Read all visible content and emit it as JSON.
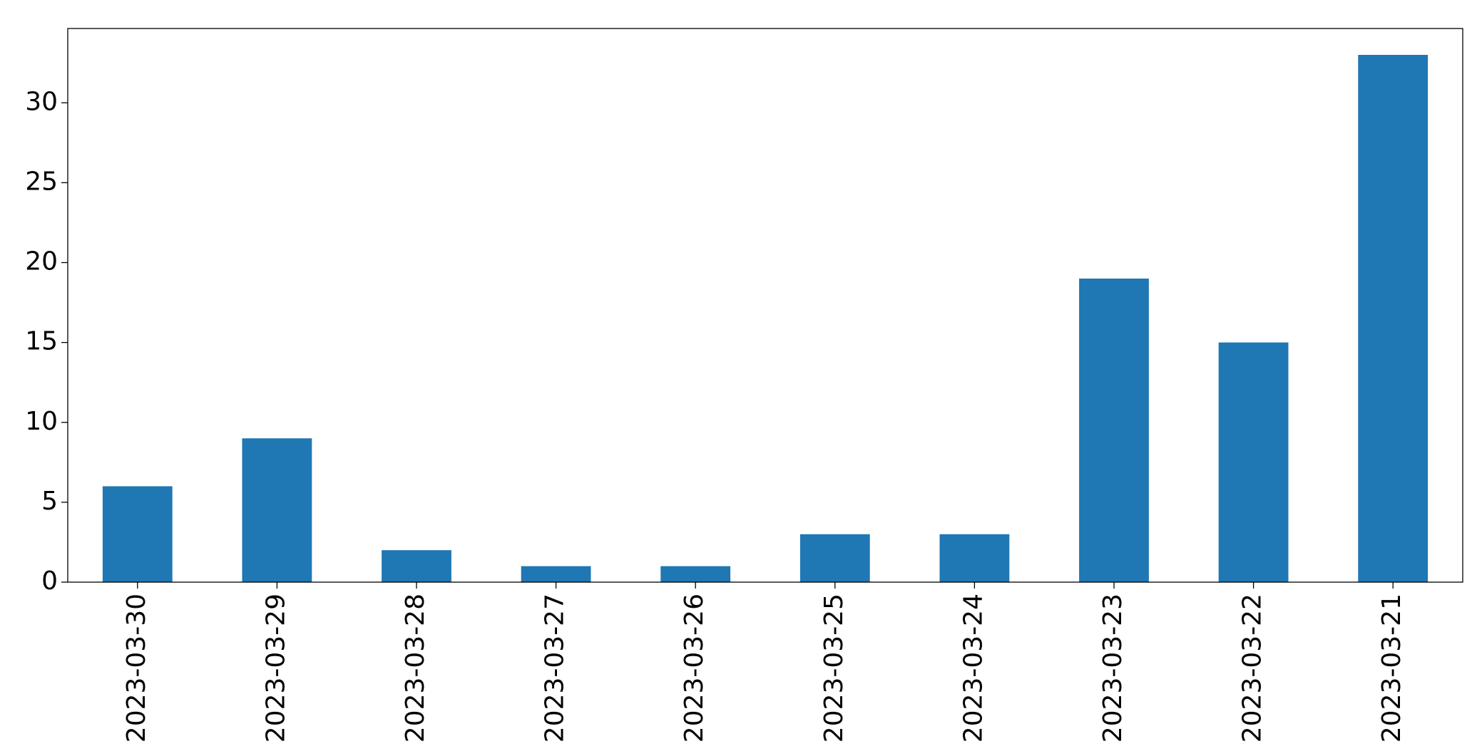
{
  "chart_data": {
    "type": "bar",
    "categories": [
      "2023-03-30",
      "2023-03-29",
      "2023-03-28",
      "2023-03-27",
      "2023-03-26",
      "2023-03-25",
      "2023-03-24",
      "2023-03-23",
      "2023-03-22",
      "2023-03-21"
    ],
    "values": [
      6,
      9,
      2,
      1,
      1,
      3,
      3,
      19,
      15,
      33
    ],
    "color": "#1f77b4",
    "ylim": [
      0,
      34.65
    ],
    "yticks": [
      0,
      5,
      10,
      15,
      20,
      25,
      30
    ],
    "grid": false
  }
}
